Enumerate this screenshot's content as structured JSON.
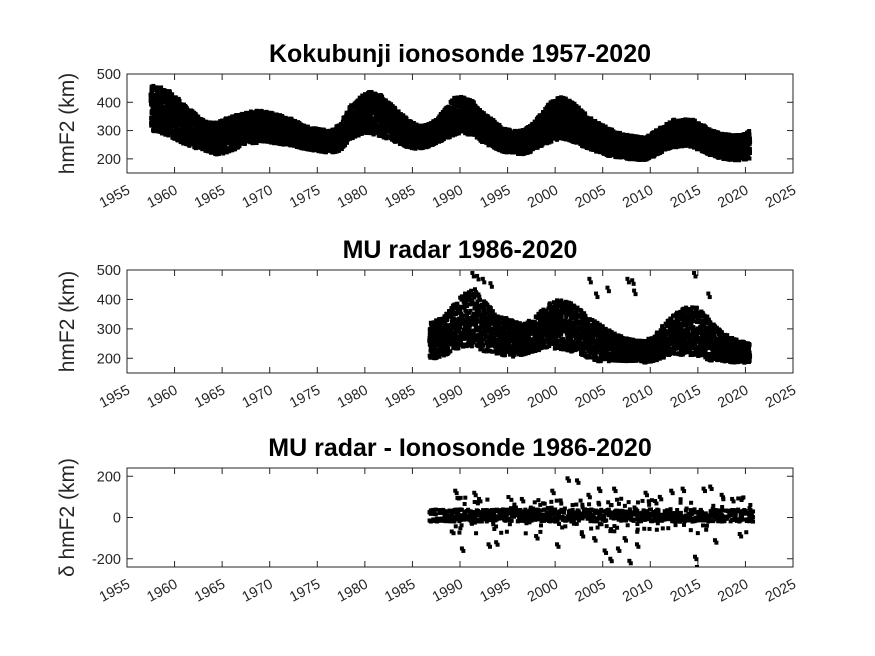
{
  "chart_data": [
    {
      "type": "scatter",
      "title": "Kokubunji ionosonde 1957-2020",
      "ylabel": "hmF2 (km)",
      "xlabel": "",
      "xlim": [
        1955,
        2025
      ],
      "ylim": [
        150,
        500
      ],
      "xticks": [
        "1955",
        "1960",
        "1965",
        "1970",
        "1975",
        "1980",
        "1985",
        "1990",
        "1995",
        "2000",
        "2005",
        "2010",
        "2015",
        "2020",
        "2025"
      ],
      "yticks": [
        "200",
        "300",
        "400",
        "500"
      ],
      "grid": false,
      "marker_color": "#000000",
      "series": [
        {
          "x": [
            1957.5,
            1958.5,
            1959.5,
            1960.5,
            1961.5,
            1962.5,
            1963.5,
            1964.5,
            1965.5,
            1966.5,
            1967.5,
            1968.5,
            1969.5,
            1970.5,
            1971.5,
            1972.5,
            1973.5,
            1974.5,
            1975.5,
            1976.5,
            1977.5,
            1978.5,
            1979.5,
            1980.5,
            1981.5,
            1982.5,
            1983.5,
            1984.5,
            1985.5,
            1986.5,
            1987.5,
            1988.5,
            1989.5,
            1990.5,
            1991.5,
            1992.5,
            1993.5,
            1994.5,
            1995.5,
            1996.5,
            1997.5,
            1998.5,
            1999.5,
            2000.5,
            2001.5,
            2002.5,
            2003.5,
            2004.5,
            2005.5,
            2006.5,
            2007.5,
            2008.5,
            2009.5,
            2010.5,
            2011.5,
            2012.5,
            2013.5,
            2014.5,
            2015.5,
            2016.5,
            2017.5,
            2018.5,
            2019.5,
            2020.5
          ],
          "min": [
            300,
            290,
            280,
            260,
            245,
            235,
            225,
            215,
            220,
            235,
            255,
            255,
            260,
            255,
            250,
            245,
            235,
            230,
            225,
            220,
            230,
            270,
            285,
            290,
            280,
            270,
            255,
            240,
            235,
            240,
            255,
            270,
            285,
            290,
            280,
            255,
            240,
            225,
            220,
            215,
            225,
            245,
            260,
            270,
            265,
            250,
            235,
            220,
            210,
            205,
            200,
            195,
            195,
            210,
            230,
            240,
            245,
            240,
            225,
            210,
            200,
            195,
            195,
            200
          ],
          "max": [
            460,
            455,
            440,
            410,
            380,
            350,
            330,
            330,
            345,
            355,
            365,
            370,
            370,
            360,
            350,
            340,
            320,
            310,
            305,
            300,
            330,
            390,
            420,
            440,
            430,
            400,
            370,
            340,
            320,
            320,
            340,
            380,
            420,
            420,
            400,
            360,
            340,
            310,
            300,
            300,
            320,
            360,
            400,
            420,
            410,
            380,
            350,
            330,
            310,
            295,
            285,
            280,
            275,
            300,
            320,
            340,
            340,
            340,
            320,
            300,
            290,
            285,
            285,
            300
          ]
        }
      ]
    },
    {
      "type": "scatter",
      "title": "MU radar 1986-2020",
      "ylabel": "hmF2 (km)",
      "xlabel": "",
      "xlim": [
        1955,
        2025
      ],
      "ylim": [
        150,
        500
      ],
      "xticks": [
        "1955",
        "1960",
        "1965",
        "1970",
        "1975",
        "1980",
        "1985",
        "1990",
        "1995",
        "2000",
        "2005",
        "2010",
        "2015",
        "2020",
        "2025"
      ],
      "yticks": [
        "200",
        "300",
        "400",
        "500"
      ],
      "grid": false,
      "marker_color": "#000000",
      "series": [
        {
          "x": [
            1986.8,
            1987.5,
            1988.5,
            1989.5,
            1990.5,
            1991.5,
            1992.5,
            1993.5,
            1994.5,
            1995.5,
            1996.5,
            1997.5,
            1998.5,
            1999.5,
            2000.5,
            2001.5,
            2002.5,
            2003.5,
            2004.5,
            2005.5,
            2006.5,
            2007.5,
            2008.5,
            2009.5,
            2010.5,
            2011.5,
            2012.5,
            2013.5,
            2014.5,
            2015.5,
            2016.5,
            2017.5,
            2018.5,
            2019.5,
            2020.5
          ],
          "min": [
            200,
            200,
            210,
            230,
            240,
            235,
            225,
            215,
            210,
            205,
            210,
            220,
            230,
            235,
            230,
            225,
            215,
            200,
            190,
            190,
            190,
            190,
            190,
            185,
            190,
            200,
            210,
            210,
            210,
            200,
            190,
            190,
            185,
            185,
            185
          ],
          "max": [
            320,
            330,
            350,
            390,
            420,
            440,
            400,
            360,
            340,
            330,
            320,
            330,
            360,
            390,
            400,
            390,
            370,
            340,
            320,
            300,
            280,
            270,
            260,
            260,
            280,
            320,
            350,
            370,
            380,
            360,
            320,
            290,
            270,
            260,
            250
          ]
        }
      ],
      "outliers": [
        [
          1991.3,
          490
        ],
        [
          1991.8,
          480
        ],
        [
          1992.4,
          470
        ],
        [
          1993.2,
          455
        ],
        [
          2003.6,
          470
        ],
        [
          2004.3,
          420
        ],
        [
          2005.5,
          440
        ],
        [
          2007.6,
          470
        ],
        [
          2008.1,
          465
        ],
        [
          2008.3,
          430
        ],
        [
          2014.6,
          490
        ],
        [
          2016.1,
          420
        ]
      ]
    },
    {
      "type": "scatter",
      "title": "MU radar - Ionosonde 1986-2020",
      "ylabel": "δ hmF2 (km)",
      "xlabel": "",
      "xlim": [
        1955,
        2025
      ],
      "ylim": [
        -240,
        240
      ],
      "xticks": [
        "1955",
        "1960",
        "1965",
        "1970",
        "1975",
        "1980",
        "1985",
        "1990",
        "1995",
        "2000",
        "2005",
        "2010",
        "2015",
        "2020",
        "2025"
      ],
      "yticks": [
        "-200",
        "0",
        "200"
      ],
      "grid": false,
      "marker_color": "#000000",
      "series": [
        {
          "x": [
            1986.8,
            2020.8
          ],
          "center": 10,
          "band": 30
        }
      ],
      "outliers": [
        [
          1989.5,
          130
        ],
        [
          1990.2,
          -150
        ],
        [
          1991.5,
          120
        ],
        [
          1992.0,
          90
        ],
        [
          1993.0,
          -130
        ],
        [
          1993.8,
          -120
        ],
        [
          1996.5,
          90
        ],
        [
          1998.0,
          -90
        ],
        [
          1999.7,
          130
        ],
        [
          2000.2,
          -130
        ],
        [
          2001.3,
          190
        ],
        [
          2002.3,
          180
        ],
        [
          2002.8,
          -80
        ],
        [
          2003.5,
          110
        ],
        [
          2004.1,
          -100
        ],
        [
          2004.6,
          140
        ],
        [
          2005.2,
          -160
        ],
        [
          2005.8,
          -200
        ],
        [
          2006.2,
          140
        ],
        [
          2006.6,
          -150
        ],
        [
          2007.3,
          -100
        ],
        [
          2007.8,
          -210
        ],
        [
          2008.6,
          -130
        ],
        [
          2009.5,
          120
        ],
        [
          2010.5,
          80
        ],
        [
          2011.0,
          100
        ],
        [
          2012.2,
          130
        ],
        [
          2013.4,
          140
        ],
        [
          2014.7,
          -190
        ],
        [
          2014.9,
          -240
        ],
        [
          2015.6,
          140
        ],
        [
          2016.3,
          150
        ],
        [
          2016.8,
          -110
        ],
        [
          2017.5,
          110
        ],
        [
          2018.6,
          90
        ],
        [
          2019.4,
          -80
        ]
      ]
    }
  ]
}
